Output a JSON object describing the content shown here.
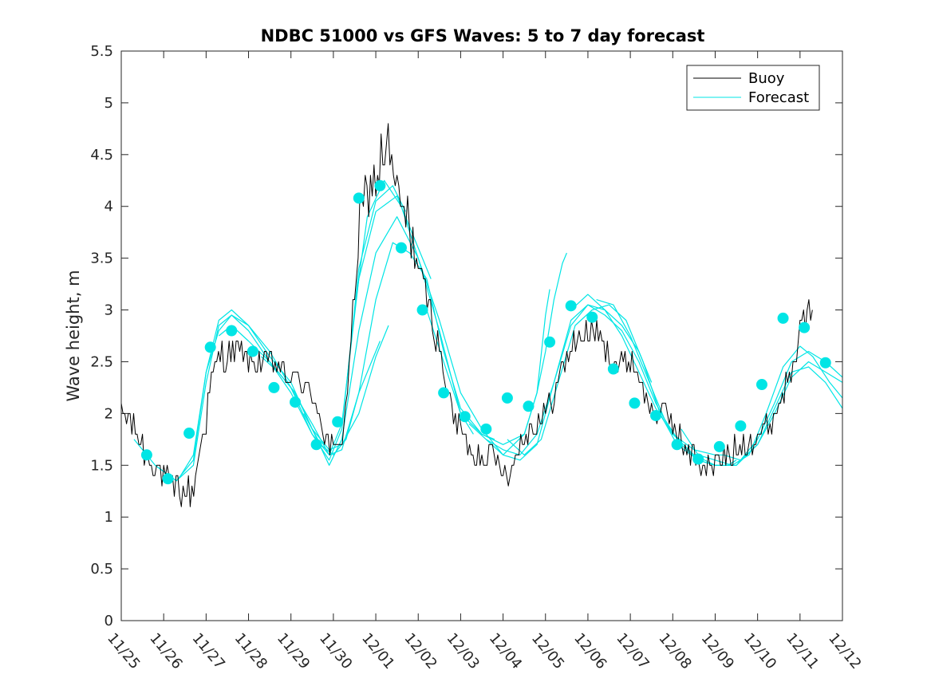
{
  "chart_data": {
    "type": "line",
    "title": "NDBC 51000 vs GFS Waves: 5 to 7 day forecast",
    "xlabel": "",
    "ylabel": "Wave height, m",
    "xlim": [
      0,
      17
    ],
    "ylim": [
      0,
      5.5
    ],
    "x_tick_labels": [
      "11/25",
      "11/26",
      "11/27",
      "11/28",
      "11/29",
      "11/30",
      "12/01",
      "12/02",
      "12/03",
      "12/04",
      "12/05",
      "12/06",
      "12/07",
      "12/08",
      "12/09",
      "12/10",
      "12/11",
      "12/12"
    ],
    "y_tick_labels": [
      "0",
      "0.5",
      "1",
      "1.5",
      "2",
      "2.5",
      "3",
      "3.5",
      "4",
      "4.5",
      "5",
      "5.5"
    ],
    "y_ticks": [
      0,
      0.5,
      1,
      1.5,
      2,
      2.5,
      3,
      3.5,
      4,
      4.5,
      5,
      5.5
    ],
    "legend": {
      "position": "top-right",
      "entries": [
        {
          "label": "Buoy",
          "color": "#000000"
        },
        {
          "label": "Forecast",
          "color": "#00e5e5"
        }
      ]
    },
    "colors": {
      "buoy": "#000000",
      "forecast": "#00e5e5",
      "marker": "#00e5e5"
    },
    "buoy_anchors": [
      [
        0.0,
        1.95
      ],
      [
        0.2,
        1.95
      ],
      [
        0.4,
        1.75
      ],
      [
        0.6,
        1.6
      ],
      [
        0.8,
        1.5
      ],
      [
        1.0,
        1.4
      ],
      [
        1.2,
        1.3
      ],
      [
        1.4,
        1.25
      ],
      [
        1.6,
        1.25
      ],
      [
        1.7,
        1.25
      ],
      [
        1.8,
        1.55
      ],
      [
        1.9,
        1.75
      ],
      [
        2.0,
        1.95
      ],
      [
        2.1,
        2.25
      ],
      [
        2.2,
        2.4
      ],
      [
        2.35,
        2.55
      ],
      [
        2.5,
        2.55
      ],
      [
        2.65,
        2.6
      ],
      [
        2.8,
        2.6
      ],
      [
        3.0,
        2.5
      ],
      [
        3.2,
        2.5
      ],
      [
        3.4,
        2.5
      ],
      [
        3.6,
        2.5
      ],
      [
        3.8,
        2.4
      ],
      [
        4.0,
        2.3
      ],
      [
        4.2,
        2.35
      ],
      [
        4.4,
        2.2
      ],
      [
        4.6,
        2.1
      ],
      [
        4.8,
        1.8
      ],
      [
        5.0,
        1.6
      ],
      [
        5.2,
        1.75
      ],
      [
        5.35,
        2.3
      ],
      [
        5.5,
        3.2
      ],
      [
        5.65,
        3.9
      ],
      [
        5.8,
        4.1
      ],
      [
        6.0,
        4.3
      ],
      [
        6.15,
        4.5
      ],
      [
        6.3,
        4.6
      ],
      [
        6.45,
        4.2
      ],
      [
        6.6,
        4.0
      ],
      [
        6.8,
        3.8
      ],
      [
        7.0,
        3.4
      ],
      [
        7.2,
        3.1
      ],
      [
        7.4,
        2.8
      ],
      [
        7.6,
        2.4
      ],
      [
        7.8,
        2.0
      ],
      [
        8.0,
        1.85
      ],
      [
        8.2,
        1.65
      ],
      [
        8.4,
        1.6
      ],
      [
        8.6,
        1.6
      ],
      [
        8.8,
        1.55
      ],
      [
        9.0,
        1.5
      ],
      [
        9.2,
        1.45
      ],
      [
        9.4,
        1.7
      ],
      [
        9.6,
        1.85
      ],
      [
        9.8,
        1.9
      ],
      [
        10.0,
        2.0
      ],
      [
        10.2,
        2.2
      ],
      [
        10.4,
        2.4
      ],
      [
        10.6,
        2.65
      ],
      [
        10.8,
        2.75
      ],
      [
        11.0,
        2.75
      ],
      [
        11.2,
        2.8
      ],
      [
        11.4,
        2.6
      ],
      [
        11.6,
        2.5
      ],
      [
        11.8,
        2.45
      ],
      [
        12.0,
        2.5
      ],
      [
        12.2,
        2.4
      ],
      [
        12.4,
        2.1
      ],
      [
        12.6,
        2.0
      ],
      [
        12.8,
        2.0
      ],
      [
        13.0,
        1.9
      ],
      [
        13.2,
        1.75
      ],
      [
        13.4,
        1.6
      ],
      [
        13.6,
        1.55
      ],
      [
        13.8,
        1.5
      ],
      [
        14.0,
        1.5
      ],
      [
        14.2,
        1.6
      ],
      [
        14.4,
        1.6
      ],
      [
        14.6,
        1.7
      ],
      [
        14.8,
        1.75
      ],
      [
        15.0,
        1.8
      ],
      [
        15.2,
        1.85
      ],
      [
        15.4,
        2.0
      ],
      [
        15.6,
        2.2
      ],
      [
        15.8,
        2.5
      ],
      [
        16.0,
        2.8
      ],
      [
        16.2,
        2.95
      ],
      [
        16.3,
        2.9
      ]
    ],
    "forecast_series": [
      {
        "name": "Forecast",
        "points": [
          [
            0.3,
            1.75
          ],
          [
            0.8,
            1.5
          ],
          [
            1.3,
            1.35
          ],
          [
            1.7,
            1.55
          ],
          [
            2.0,
            2.4
          ],
          [
            2.3,
            2.8
          ],
          [
            2.6,
            2.95
          ],
          [
            3.0,
            2.85
          ],
          [
            3.5,
            2.6
          ],
          [
            4.0,
            2.25
          ],
          [
            4.5,
            1.8
          ],
          [
            4.9,
            1.55
          ],
          [
            5.2,
            1.85
          ],
          [
            5.6,
            3.4
          ],
          [
            6.0,
            4.05
          ],
          [
            6.4,
            4.2
          ],
          [
            6.7,
            3.95
          ]
        ]
      },
      {
        "name": "Forecast",
        "points": [
          [
            0.8,
            1.5
          ],
          [
            1.3,
            1.35
          ],
          [
            1.7,
            1.5
          ],
          [
            2.0,
            2.3
          ],
          [
            2.3,
            2.85
          ],
          [
            2.6,
            2.95
          ],
          [
            3.0,
            2.8
          ],
          [
            3.5,
            2.5
          ],
          [
            4.0,
            2.2
          ],
          [
            4.5,
            1.8
          ],
          [
            4.9,
            1.6
          ],
          [
            5.2,
            1.9
          ],
          [
            5.6,
            3.3
          ],
          [
            6.0,
            3.95
          ],
          [
            6.5,
            4.1
          ],
          [
            7.0,
            3.6
          ],
          [
            7.3,
            3.3
          ]
        ]
      },
      {
        "name": "Forecast",
        "points": [
          [
            1.4,
            1.4
          ],
          [
            1.7,
            1.6
          ],
          [
            2.0,
            2.4
          ],
          [
            2.3,
            2.9
          ],
          [
            2.6,
            3.0
          ],
          [
            3.0,
            2.85
          ],
          [
            3.5,
            2.55
          ],
          [
            4.0,
            2.3
          ],
          [
            4.5,
            1.85
          ],
          [
            4.9,
            1.5
          ],
          [
            5.2,
            1.75
          ],
          [
            5.6,
            2.8
          ],
          [
            6.0,
            3.55
          ],
          [
            6.5,
            3.9
          ],
          [
            7.0,
            3.5
          ],
          [
            7.5,
            2.8
          ],
          [
            8.0,
            2.0
          ],
          [
            8.3,
            1.8
          ]
        ]
      },
      {
        "name": "Forecast",
        "points": [
          [
            2.3,
            2.75
          ],
          [
            2.6,
            2.85
          ],
          [
            3.0,
            2.7
          ],
          [
            3.5,
            2.5
          ],
          [
            4.0,
            2.25
          ],
          [
            4.5,
            1.9
          ],
          [
            4.9,
            1.6
          ],
          [
            5.2,
            1.65
          ],
          [
            5.6,
            2.2
          ],
          [
            6.0,
            3.1
          ],
          [
            6.4,
            3.65
          ],
          [
            6.8,
            3.55
          ],
          [
            7.2,
            3.3
          ],
          [
            7.6,
            2.6
          ],
          [
            8.0,
            2.05
          ],
          [
            8.5,
            1.8
          ],
          [
            8.8,
            1.75
          ]
        ]
      },
      {
        "name": "Forecast",
        "points": [
          [
            3.3,
            2.55
          ],
          [
            3.7,
            2.4
          ],
          [
            4.1,
            2.2
          ],
          [
            4.5,
            1.85
          ],
          [
            4.9,
            1.65
          ],
          [
            5.2,
            1.7
          ],
          [
            5.6,
            2.0
          ],
          [
            6.0,
            2.55
          ],
          [
            6.3,
            2.85
          ]
        ]
      },
      {
        "name": "Forecast",
        "points": [
          [
            4.3,
            2.0
          ],
          [
            4.7,
            1.7
          ],
          [
            5.0,
            1.6
          ],
          [
            5.3,
            1.75
          ],
          [
            5.6,
            2.2
          ],
          [
            5.9,
            2.5
          ],
          [
            6.1,
            2.7
          ]
        ]
      },
      {
        "name": "Forecast",
        "points": [
          [
            5.5,
            3.0
          ],
          [
            5.8,
            3.9
          ],
          [
            6.2,
            4.25
          ],
          [
            6.6,
            4.0
          ],
          [
            7.0,
            3.5
          ],
          [
            7.5,
            2.9
          ],
          [
            8.0,
            2.2
          ],
          [
            8.5,
            1.85
          ],
          [
            9.0,
            1.6
          ],
          [
            9.5,
            1.8
          ],
          [
            9.8,
            2.2
          ],
          [
            10.0,
            2.6
          ],
          [
            10.2,
            3.1
          ],
          [
            10.4,
            3.45
          ],
          [
            10.5,
            3.55
          ]
        ]
      },
      {
        "name": "Forecast",
        "points": [
          [
            7.2,
            3.0
          ],
          [
            7.6,
            2.5
          ],
          [
            8.0,
            2.0
          ],
          [
            8.5,
            1.8
          ],
          [
            9.0,
            1.7
          ],
          [
            9.5,
            1.8
          ],
          [
            9.8,
            2.2
          ],
          [
            10.0,
            2.95
          ],
          [
            10.1,
            3.2
          ]
        ]
      },
      {
        "name": "Forecast",
        "points": [
          [
            8.2,
            1.9
          ],
          [
            8.6,
            1.75
          ],
          [
            9.0,
            1.65
          ],
          [
            9.4,
            1.6
          ],
          [
            9.8,
            1.8
          ],
          [
            10.2,
            2.3
          ],
          [
            10.6,
            2.85
          ],
          [
            11.0,
            3.05
          ],
          [
            11.4,
            3.0
          ],
          [
            11.8,
            2.85
          ],
          [
            12.2,
            2.6
          ],
          [
            12.5,
            2.3
          ]
        ]
      },
      {
        "name": "Forecast",
        "points": [
          [
            8.6,
            1.75
          ],
          [
            9.0,
            1.6
          ],
          [
            9.4,
            1.55
          ],
          [
            9.8,
            1.7
          ],
          [
            10.2,
            2.3
          ],
          [
            10.6,
            2.9
          ],
          [
            11.0,
            3.05
          ],
          [
            11.4,
            2.95
          ],
          [
            11.8,
            2.8
          ],
          [
            12.2,
            2.5
          ],
          [
            12.6,
            2.1
          ],
          [
            13.0,
            1.8
          ],
          [
            13.5,
            1.65
          ],
          [
            14.0,
            1.6
          ],
          [
            14.2,
            1.6
          ]
        ]
      },
      {
        "name": "Forecast",
        "points": [
          [
            9.1,
            1.75
          ],
          [
            9.5,
            1.6
          ],
          [
            9.9,
            1.75
          ],
          [
            10.3,
            2.3
          ],
          [
            10.7,
            2.85
          ],
          [
            11.1,
            3.0
          ],
          [
            11.5,
            3.05
          ],
          [
            11.9,
            2.9
          ],
          [
            12.3,
            2.5
          ],
          [
            12.7,
            2.0
          ],
          [
            13.1,
            1.7
          ],
          [
            13.6,
            1.55
          ],
          [
            14.0,
            1.5
          ],
          [
            14.3,
            1.5
          ],
          [
            14.5,
            1.55
          ]
        ]
      },
      {
        "name": "Forecast",
        "points": [
          [
            10.6,
            3.0
          ],
          [
            11.0,
            3.15
          ],
          [
            11.4,
            3.0
          ],
          [
            11.8,
            2.75
          ],
          [
            12.2,
            2.4
          ],
          [
            12.6,
            2.05
          ],
          [
            13.0,
            1.8
          ],
          [
            13.5,
            1.6
          ],
          [
            14.0,
            1.5
          ],
          [
            14.5,
            1.5
          ],
          [
            15.0,
            1.7
          ],
          [
            15.4,
            2.0
          ],
          [
            15.8,
            2.35
          ],
          [
            16.2,
            2.5
          ],
          [
            16.6,
            2.4
          ],
          [
            17.0,
            2.3
          ]
        ]
      },
      {
        "name": "Forecast",
        "points": [
          [
            11.2,
            3.1
          ],
          [
            11.6,
            3.05
          ],
          [
            12.0,
            2.75
          ],
          [
            12.4,
            2.35
          ],
          [
            12.8,
            1.95
          ],
          [
            13.2,
            1.7
          ],
          [
            13.6,
            1.55
          ],
          [
            14.0,
            1.5
          ],
          [
            14.5,
            1.5
          ],
          [
            15.0,
            1.75
          ],
          [
            15.4,
            2.1
          ],
          [
            15.8,
            2.5
          ],
          [
            16.2,
            2.6
          ],
          [
            16.6,
            2.5
          ],
          [
            17.0,
            2.35
          ]
        ]
      },
      {
        "name": "Forecast",
        "points": [
          [
            13.2,
            1.85
          ],
          [
            13.6,
            1.6
          ],
          [
            14.0,
            1.55
          ],
          [
            14.4,
            1.5
          ],
          [
            14.8,
            1.6
          ],
          [
            15.2,
            2.0
          ],
          [
            15.6,
            2.45
          ],
          [
            16.0,
            2.65
          ],
          [
            16.3,
            2.55
          ],
          [
            16.7,
            2.3
          ],
          [
            17.0,
            2.15
          ]
        ]
      },
      {
        "name": "Forecast",
        "points": [
          [
            14.2,
            1.6
          ],
          [
            14.6,
            1.55
          ],
          [
            15.0,
            1.7
          ],
          [
            15.4,
            2.05
          ],
          [
            15.8,
            2.4
          ],
          [
            16.2,
            2.45
          ],
          [
            16.6,
            2.3
          ],
          [
            17.0,
            2.05
          ]
        ]
      }
    ],
    "marker_points": [
      [
        0.6,
        1.6
      ],
      [
        1.1,
        1.37
      ],
      [
        1.6,
        1.81
      ],
      [
        2.1,
        2.64
      ],
      [
        2.6,
        2.8
      ],
      [
        3.1,
        2.6
      ],
      [
        3.6,
        2.25
      ],
      [
        4.1,
        2.11
      ],
      [
        4.6,
        1.7
      ],
      [
        5.1,
        1.92
      ],
      [
        5.6,
        4.08
      ],
      [
        6.1,
        4.2
      ],
      [
        6.6,
        3.6
      ],
      [
        7.1,
        3.0
      ],
      [
        7.6,
        2.2
      ],
      [
        8.1,
        1.97
      ],
      [
        8.6,
        1.85
      ],
      [
        9.1,
        2.15
      ],
      [
        9.6,
        2.07
      ],
      [
        10.1,
        2.69
      ],
      [
        10.6,
        3.04
      ],
      [
        11.1,
        2.93
      ],
      [
        11.6,
        2.43
      ],
      [
        12.1,
        2.1
      ],
      [
        12.6,
        1.98
      ],
      [
        13.1,
        1.7
      ],
      [
        13.6,
        1.56
      ],
      [
        14.1,
        1.68
      ],
      [
        14.6,
        1.88
      ],
      [
        15.1,
        2.28
      ],
      [
        15.6,
        2.92
      ],
      [
        16.1,
        2.83
      ],
      [
        16.6,
        2.49
      ]
    ]
  }
}
